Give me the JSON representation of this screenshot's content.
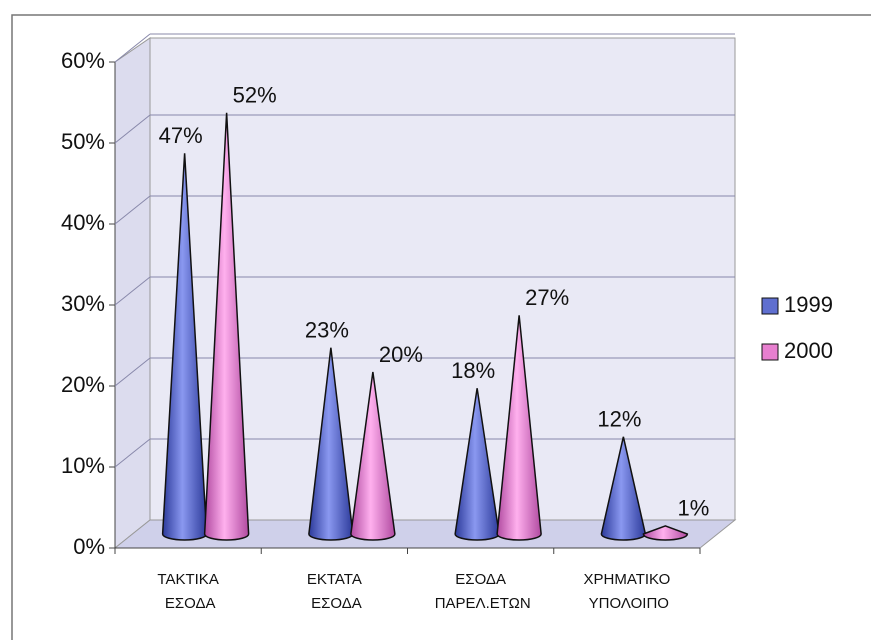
{
  "chart_data": {
    "type": "cone3d",
    "categories": [
      "ΤΑΚΤΙΚΑ ΕΣΟΔΑ",
      "ΕΚΤΑΤΑ ΕΣΟΔΑ",
      "ΕΣΟΔΑ ΠΑΡΕΛ.ΕΤΩΝ",
      "ΧΡΗΜΑΤΙΚΟ ΥΠΟΛΟΙΠΟ"
    ],
    "series": [
      {
        "name": "1999",
        "color": "#5f6fd0",
        "values": [
          47,
          23,
          18,
          12
        ],
        "value_labels": [
          "47%",
          "23%",
          "18%",
          "12%"
        ]
      },
      {
        "name": "2000",
        "color": "#e77fcf",
        "values": [
          52,
          20,
          27,
          1
        ],
        "value_labels": [
          "52%",
          "20%",
          "27%",
          "1%"
        ]
      }
    ],
    "ylim": [
      0,
      60
    ],
    "yticks": [
      {
        "value": 0,
        "label": "0%"
      },
      {
        "value": 10,
        "label": "10%"
      },
      {
        "value": 20,
        "label": "20%"
      },
      {
        "value": 30,
        "label": "30%"
      },
      {
        "value": 40,
        "label": "40%"
      },
      {
        "value": 50,
        "label": "50%"
      },
      {
        "value": 60,
        "label": "60%"
      }
    ],
    "grid": true,
    "legend": "right"
  }
}
